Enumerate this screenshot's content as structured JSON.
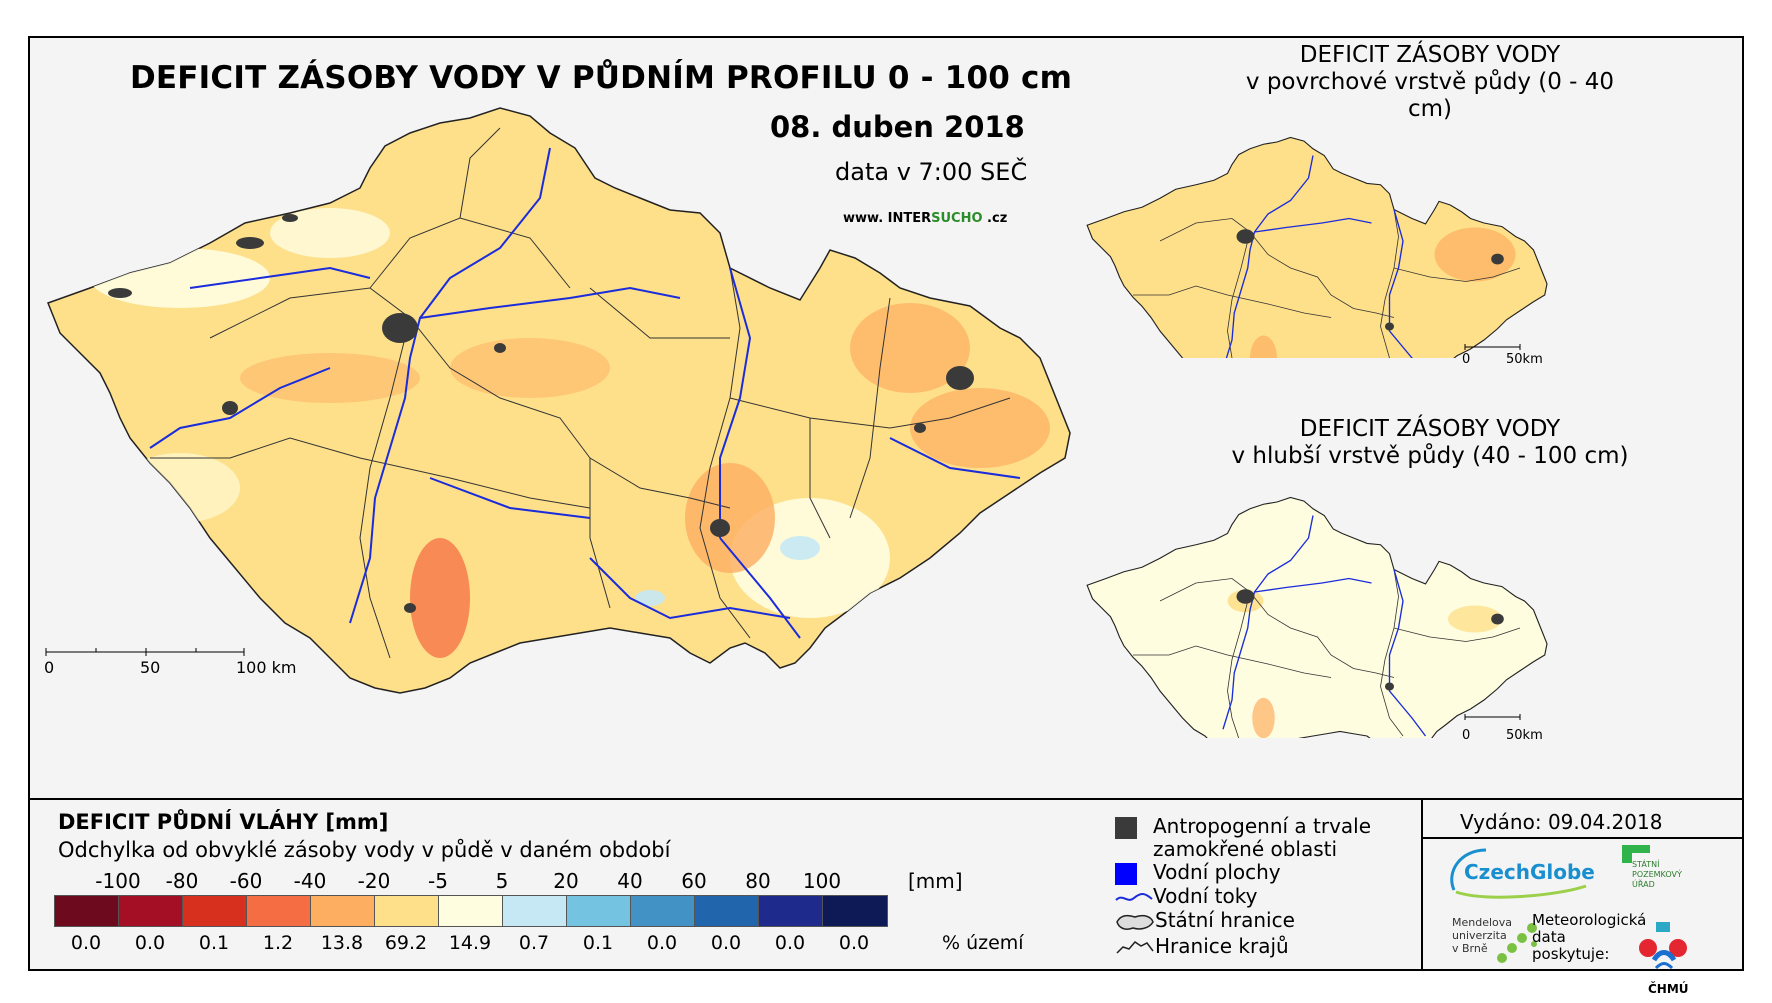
{
  "main": {
    "title": "DEFICIT ZÁSOBY VODY V PŮDNÍM PROFILU 0 - 100 cm",
    "date": "08. duben 2018",
    "time": "data v 7:00 SEČ",
    "web_prefix": "www. INTER",
    "web_accent": "SUCHO",
    "web_suffix": " .cz",
    "scale": [
      "0",
      "50",
      "100 km"
    ]
  },
  "inset_top": {
    "title_line1": "DEFICIT ZÁSOBY VODY",
    "title_line2": "v povrchové vrstvě půdy (0 - 40 cm)",
    "scale": [
      "0",
      "50km"
    ]
  },
  "inset_bottom": {
    "title_line1": "DEFICIT ZÁSOBY VODY",
    "title_line2": "v hlubší vrstvě půdy (40 - 100 cm)",
    "scale": [
      "0",
      "50km"
    ]
  },
  "legend": {
    "title": "DEFICIT PŮDNÍ VLÁHY [mm]",
    "subtitle": "Odchylka od obvyklé zásoby vody v půdě v daném období",
    "ticks": [
      "-100",
      "-80",
      "-60",
      "-40",
      "-20",
      "-5",
      "5",
      "20",
      "40",
      "60",
      "80",
      "100"
    ],
    "unit": "[mm]",
    "colors": [
      "#6e0a1e",
      "#a50f26",
      "#d7301f",
      "#f46d43",
      "#fdae61",
      "#fee08b",
      "#fffde0",
      "#c6e8f5",
      "#74c3e1",
      "#4292c6",
      "#2166ac",
      "#1e2a8c",
      "#0d1a55"
    ],
    "percent": [
      "0.0",
      "0.0",
      "0.1",
      "1.2",
      "13.8",
      "69.2",
      "14.9",
      "0.7",
      "0.1",
      "0.0",
      "0.0",
      "0.0",
      "0.0"
    ],
    "percent_unit": "% území"
  },
  "symbols": {
    "anthro_line1": "Antropogenní a trvale",
    "anthro_line2": "zamokřené oblasti",
    "water_bodies": "Vodní plochy",
    "rivers": "Vodní toky",
    "state_border": "Státní hranice",
    "region_border": "Hranice krajů",
    "anthro_color": "#3a3a3a",
    "water_color": "#0000ff"
  },
  "info": {
    "issued": "Vydáno: 09.04.2018",
    "czechglobe": "CzechGlobe",
    "spu_line1": "STÁTNÍ",
    "spu_line2": "POZEMKOVÝ",
    "spu_line3": "ÚŘAD",
    "mendel_line1": "Mendelova",
    "mendel_line2": "univerzita",
    "mendel_line3": "v Brně",
    "meteo_line1": "Meteorologická",
    "meteo_line2": "data",
    "meteo_line3": "poskytuje:",
    "chmu": "ČHMÚ"
  }
}
